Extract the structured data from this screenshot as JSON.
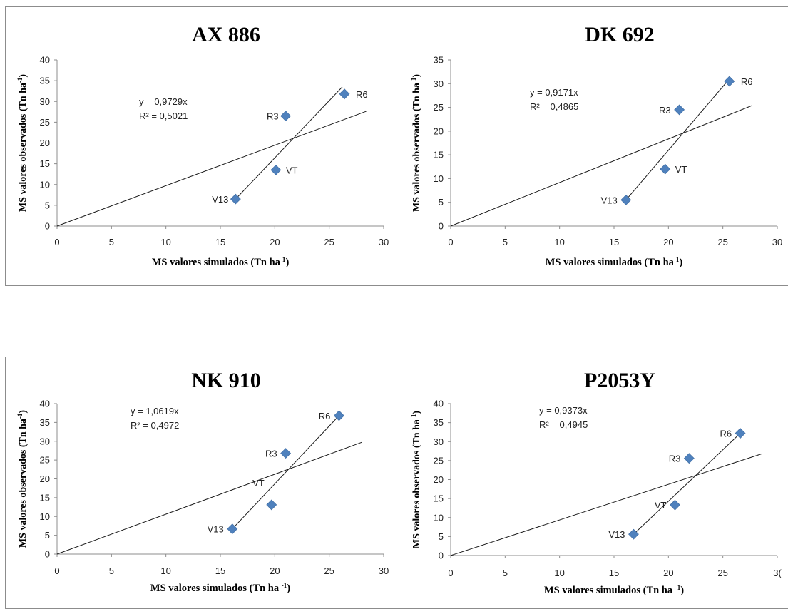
{
  "chart_data": [
    {
      "type": "scatter",
      "title": "AX 886",
      "ylabel": "MS valores observados (Tn ha",
      "ylabel_sup": "-1",
      "xlabel": "MS valores simulados  (Tn ha",
      "xlabel_sup": "-1",
      "xlim": [
        0,
        30
      ],
      "ylim": [
        0,
        40
      ],
      "xticks": [
        "0",
        "5",
        "10",
        "15",
        "20",
        "25",
        "30"
      ],
      "yticks": [
        "0",
        "5",
        "10",
        "15",
        "20",
        "25",
        "30",
        "35",
        "40"
      ],
      "points": [
        {
          "label": "V13",
          "x": 16.4,
          "y": 6.5
        },
        {
          "label": "VT",
          "x": 20.1,
          "y": 13.5
        },
        {
          "label": "R3",
          "x": 21.0,
          "y": 26.5
        },
        {
          "label": "R6",
          "x": 26.4,
          "y": 31.8
        }
      ],
      "equation": "y = 0,9729x",
      "r2": "R² = 0,5021",
      "trendline_slope": 0.9729,
      "trendline_xmax": 28.4,
      "fit_line": [
        [
          16.4,
          6.5
        ],
        [
          26.2,
          33.5
        ]
      ],
      "grid": false
    },
    {
      "type": "scatter",
      "title": "DK 692",
      "ylabel": "MS valores observados (Tn ha",
      "ylabel_sup": "-1",
      "xlabel": "MS valores simulados  (Tn ha",
      "xlabel_sup": "-1",
      "xlim": [
        0,
        30
      ],
      "ylim": [
        0,
        35
      ],
      "xticks": [
        "0",
        "5",
        "10",
        "15",
        "20",
        "25",
        "30"
      ],
      "yticks": [
        "0",
        "5",
        "10",
        "15",
        "20",
        "25",
        "30",
        "35"
      ],
      "points": [
        {
          "label": "V13",
          "x": 16.1,
          "y": 5.5
        },
        {
          "label": "VT",
          "x": 19.7,
          "y": 12.0
        },
        {
          "label": "R3",
          "x": 21.0,
          "y": 24.5
        },
        {
          "label": "R6",
          "x": 25.6,
          "y": 30.5
        }
      ],
      "equation": "y = 0,9171x",
      "r2": "R² = 0,4865",
      "trendline_slope": 0.9171,
      "trendline_xmax": 27.7,
      "fit_line": [
        [
          16.1,
          5.5
        ],
        [
          25.6,
          31.0
        ]
      ],
      "grid": false
    },
    {
      "type": "scatter",
      "title": "NK 910",
      "ylabel": "MS valores observados (Tn ha",
      "ylabel_sup": "-1",
      "xlabel": "MS valores simulados  (Tn ha ",
      "xlabel_sup": "-1",
      "xlim": [
        0,
        30
      ],
      "ylim": [
        0,
        40
      ],
      "xticks": [
        "0",
        "5",
        "10",
        "15",
        "20",
        "25",
        "30"
      ],
      "yticks": [
        "0",
        "5",
        "10",
        "15",
        "20",
        "25",
        "30",
        "35",
        "40"
      ],
      "points": [
        {
          "label": "V13",
          "x": 16.1,
          "y": 6.7
        },
        {
          "label": "VT",
          "x": 19.7,
          "y": 13.1
        },
        {
          "label": "R3",
          "x": 21.0,
          "y": 26.8
        },
        {
          "label": "R6",
          "x": 25.9,
          "y": 36.8
        }
      ],
      "equation": "y = 1,0619x",
      "r2": "R² = 0,4972",
      "trendline_slope": 1.0619,
      "trendline_xmax": 28.0,
      "fit_line": [
        [
          16.1,
          6.7
        ],
        [
          25.9,
          36.8
        ]
      ],
      "grid": false
    },
    {
      "type": "scatter",
      "title": "P2053Y",
      "ylabel": "MS valores observados (Tn ha",
      "ylabel_sup": "-1",
      "xlabel": "MS valores simulados  (Tn ha ",
      "xlabel_sup": "-1",
      "xlim": [
        0,
        30
      ],
      "ylim": [
        0,
        40
      ],
      "xticks": [
        "0",
        "5",
        "10",
        "15",
        "20",
        "25",
        "3("
      ],
      "yticks": [
        "0",
        "5",
        "10",
        "15",
        "20",
        "25",
        "30",
        "35",
        "40"
      ],
      "points": [
        {
          "label": "V13",
          "x": 16.8,
          "y": 5.6
        },
        {
          "label": "VT",
          "x": 20.6,
          "y": 13.3
        },
        {
          "label": "R3",
          "x": 21.9,
          "y": 25.6
        },
        {
          "label": "R6",
          "x": 26.6,
          "y": 32.2
        }
      ],
      "equation": "y = 0,9373x",
      "r2": "R² = 0,4945",
      "trendline_slope": 0.9373,
      "trendline_xmax": 28.6,
      "fit_line": [
        [
          16.8,
          5.6
        ],
        [
          26.6,
          32.2
        ]
      ],
      "grid": false
    }
  ]
}
